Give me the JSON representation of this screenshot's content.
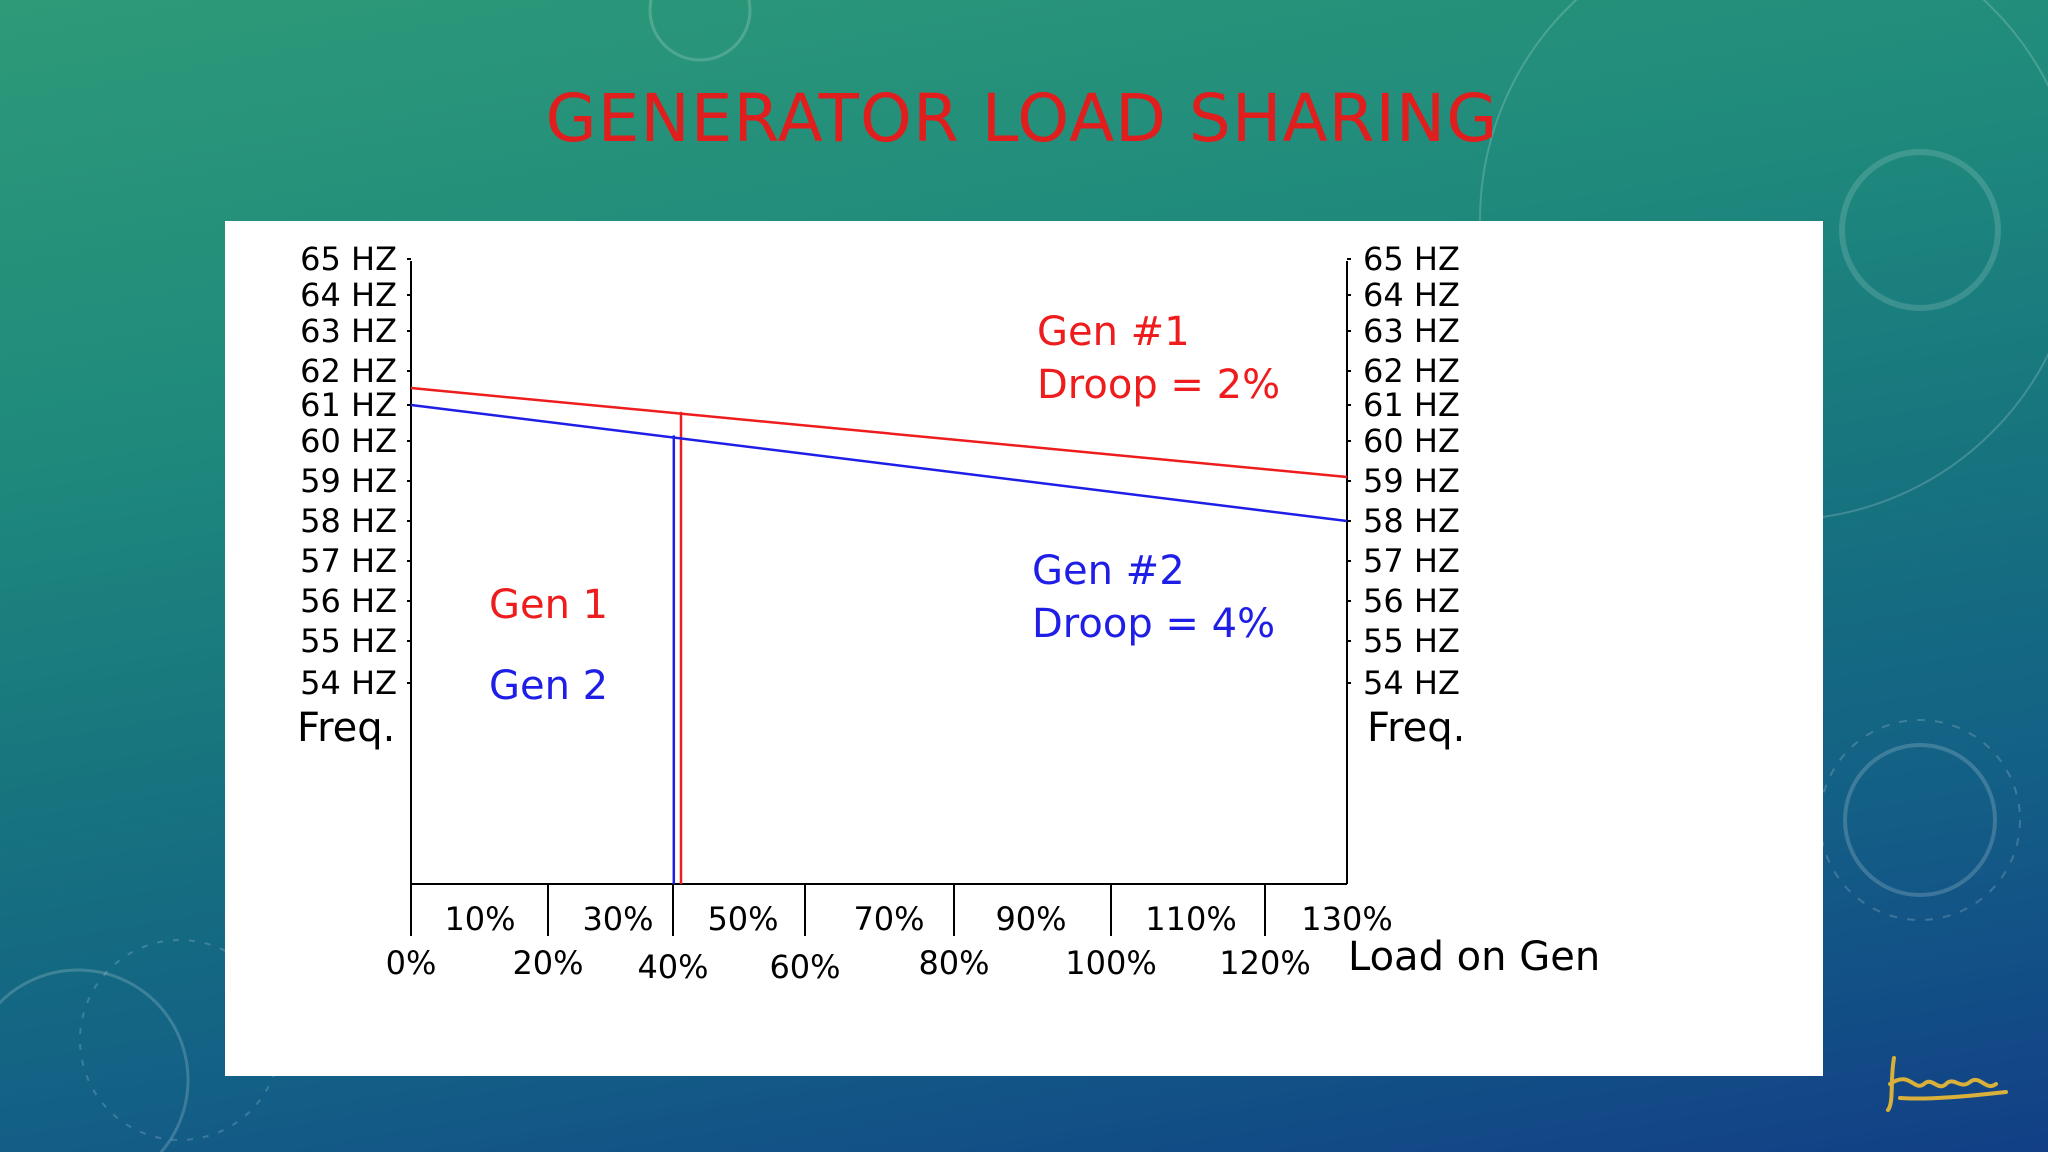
{
  "slide": {
    "title": "GENERATOR LOAD SHARING",
    "colors": {
      "title": "#e01e1e",
      "gen1": "#ee1c1c",
      "gen2": "#1e1ee6",
      "axis": "#000000",
      "panel": "#ffffff"
    }
  },
  "chart_data": {
    "type": "line",
    "title": "",
    "ylabel": "Freq.",
    "ylabel_right": "Freq.",
    "xlabel": "Load on Gen",
    "ylim": [
      54,
      65
    ],
    "xlim": [
      0,
      130
    ],
    "y_ticks": [
      65,
      64,
      63,
      62,
      61,
      60,
      59,
      58,
      57,
      56,
      55,
      54
    ],
    "y_tick_labels": [
      "65 HZ",
      "64 HZ",
      "63 HZ",
      "62 HZ",
      "61 HZ",
      "60 HZ",
      "59 HZ",
      "58 HZ",
      "57 HZ",
      "56 HZ",
      "55 HZ",
      "54 HZ"
    ],
    "x_ticks_upper": [
      10,
      30,
      50,
      70,
      90,
      110,
      130
    ],
    "x_tick_labels_upper": [
      "10%",
      "30%",
      "50%",
      "70%",
      "90%",
      "110%",
      "130%"
    ],
    "x_ticks_lower": [
      0,
      20,
      40,
      60,
      80,
      100,
      120
    ],
    "x_tick_labels_lower": [
      "0%",
      "20%",
      "40%",
      "60%",
      "80%",
      "100%",
      "120%"
    ],
    "series": [
      {
        "name": "Gen 1",
        "color": "#ee1c1c",
        "x": [
          0,
          130
        ],
        "y": [
          61.5,
          59.1
        ],
        "operating_load": 37.5
      },
      {
        "name": "Gen 2",
        "color": "#1e1ee6",
        "x": [
          0,
          130
        ],
        "y": [
          61.0,
          58.0
        ],
        "operating_load": 36.5
      }
    ],
    "legend": {
      "position": "left-inside",
      "entries": [
        "Gen 1",
        "Gen 2"
      ]
    },
    "annotations": [
      {
        "id": "gen1",
        "lines": [
          "Gen #1",
          "Droop = 2%"
        ],
        "color": "#ee1c1c"
      },
      {
        "id": "gen2",
        "lines": [
          "Gen #2",
          "Droop = 4%"
        ],
        "color": "#1e1ee6"
      }
    ],
    "grid": false
  }
}
